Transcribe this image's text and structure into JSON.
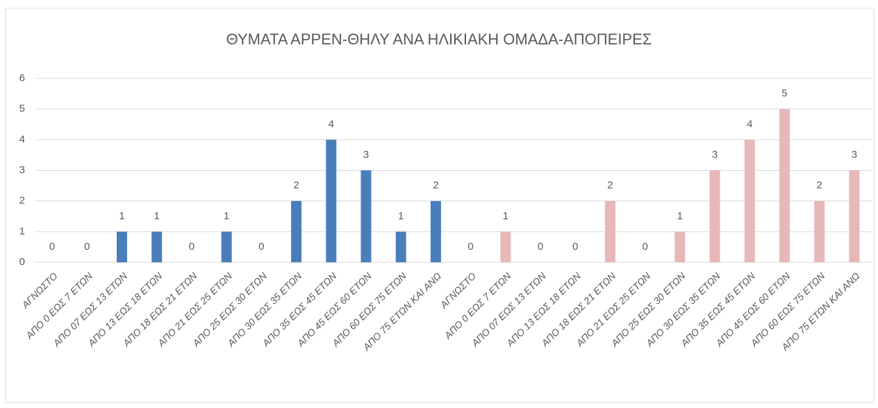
{
  "chart_data": {
    "type": "bar",
    "title": "ΘΥΜΑΤΑ ΑΡΡΕΝ-ΘΗΛΥ ΑΝΑ ΗΛΙΚΙΑΚΗ ΟΜΑΔΑ-ΑΠΟΠΕΙΡΕΣ",
    "categories": [
      "ΑΓΝΩΣΤΟ",
      "ΑΠΟ 0 ΕΩΣ 7 ΕΤΩΝ",
      "ΑΠΟ 07 ΕΩΣ 13 ΕΤΩΝ",
      "ΑΠΟ 13 ΕΩΣ 18 ΕΤΩΝ",
      "ΑΠΟ 18 ΕΩΣ 21 ΕΤΩΝ",
      "ΑΠΟ 21 ΕΩΣ 25 ΕΤΩΝ",
      "ΑΠΟ 25 ΕΩΣ 30 ΕΤΩΝ",
      "ΑΠΟ 30 ΕΩΣ 35 ΕΤΩΝ",
      "ΑΠΟ 35 ΕΩΣ 45 ΕΤΩΝ",
      "ΑΠΟ 45 ΕΩΣ 60 ΕΤΩΝ",
      "ΑΠΟ 60 ΕΩΣ 75 ΕΤΩΝ",
      "ΑΠΟ 75 ΕΤΩΝ ΚΑΙ ΑΝΩ",
      "ΑΓΝΩΣΤΟ",
      "ΑΠΟ 0 ΕΩΣ 7 ΕΤΩΝ",
      "ΑΠΟ 07 ΕΩΣ 13 ΕΤΩΝ",
      "ΑΠΟ 13 ΕΩΣ 18 ΕΤΩΝ",
      "ΑΠΟ 18 ΕΩΣ 21 ΕΤΩΝ",
      "ΑΠΟ 21 ΕΩΣ 25 ΕΤΩΝ",
      "ΑΠΟ 25 ΕΩΣ 30 ΕΤΩΝ",
      "ΑΠΟ 30 ΕΩΣ 35 ΕΤΩΝ",
      "ΑΠΟ 35 ΕΩΣ 45 ΕΤΩΝ",
      "ΑΠΟ 45 ΕΩΣ 60 ΕΤΩΝ",
      "ΑΠΟ 60 ΕΩΣ 75 ΕΤΩΝ",
      "ΑΠΟ 75 ΕΤΩΝ ΚΑΙ ΑΝΩ"
    ],
    "values": [
      0,
      0,
      1,
      1,
      0,
      1,
      0,
      2,
      4,
      3,
      1,
      2,
      0,
      1,
      0,
      0,
      2,
      0,
      1,
      3,
      4,
      5,
      2,
      3
    ],
    "colors": [
      "#4a7ebb",
      "#4a7ebb",
      "#4a7ebb",
      "#4a7ebb",
      "#4a7ebb",
      "#4a7ebb",
      "#4a7ebb",
      "#4a7ebb",
      "#4a7ebb",
      "#4a7ebb",
      "#4a7ebb",
      "#4a7ebb",
      "#e6b8b7",
      "#e6b8b7",
      "#e6b8b7",
      "#e6b8b7",
      "#e6b8b7",
      "#e6b8b7",
      "#e6b8b7",
      "#e6b8b7",
      "#e6b8b7",
      "#e6b8b7",
      "#e6b8b7",
      "#e6b8b7"
    ],
    "ylim": [
      0,
      6
    ],
    "yticks": [
      0,
      1,
      2,
      3,
      4,
      5,
      6
    ],
    "grid": true
  }
}
